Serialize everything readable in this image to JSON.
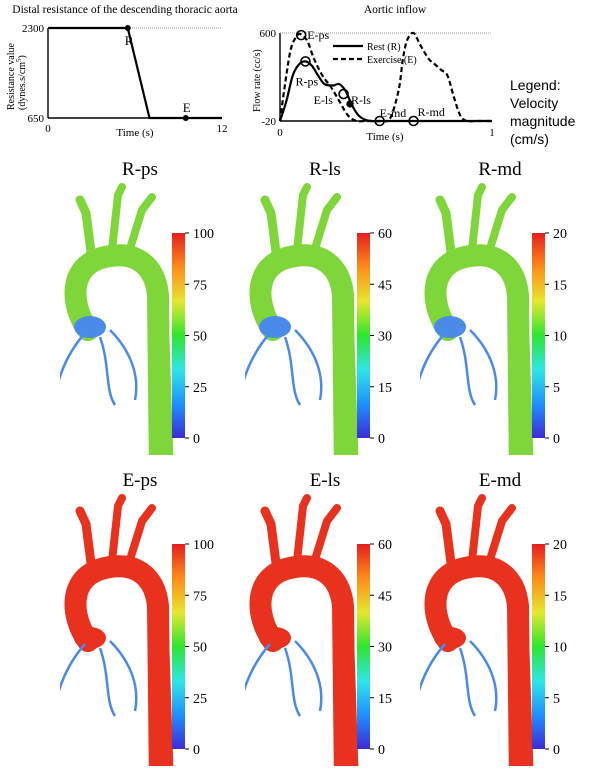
{
  "chart_data": [
    {
      "type": "line",
      "title": "Distal resistance of the descending thoracic aorta",
      "xlabel": "Time (s)",
      "ylabel": "Resistance value (dynes.s/cm⁵)",
      "xlim": [
        0,
        12
      ],
      "ylim": [
        650,
        2300
      ],
      "x_ticks": [
        "0",
        "12"
      ],
      "y_ticks": [
        "2300",
        "650"
      ],
      "series": [
        {
          "x": [
            0,
            5.5,
            7,
            12
          ],
          "y": [
            2300,
            2300,
            650,
            650
          ]
        }
      ],
      "markers": [
        {
          "label": "R",
          "x": 5.5,
          "y": 2300
        },
        {
          "label": "E",
          "x": 9.5,
          "y": 650
        }
      ]
    },
    {
      "type": "line",
      "title": "Aortic inflow",
      "xlabel": "Time (s)",
      "ylabel": "Flow rate (cc/s)",
      "xlim": [
        0,
        1
      ],
      "ylim": [
        -20,
        600
      ],
      "x_ticks": [
        "0",
        "1"
      ],
      "y_ticks": [
        "600",
        "-20"
      ],
      "legend": [
        "Rest (R)",
        "Exercise (E)"
      ],
      "series": [
        {
          "name": "Rest (R)",
          "style": "solid",
          "x": [
            0,
            0.03,
            0.06,
            0.09,
            0.12,
            0.15,
            0.18,
            0.21,
            0.25,
            0.28,
            0.31,
            0.34,
            0.37,
            0.4,
            0.43,
            0.46,
            0.5,
            1.0
          ],
          "y": [
            -20,
            120,
            300,
            380,
            400,
            370,
            300,
            240,
            230,
            240,
            190,
            90,
            20,
            -10,
            -20,
            -20,
            -20,
            -20
          ]
        },
        {
          "name": "Exercise (E)",
          "style": "dashed",
          "x": [
            0,
            0.02,
            0.05,
            0.08,
            0.1,
            0.13,
            0.16,
            0.2,
            0.24,
            0.28,
            0.32,
            0.36,
            0.4,
            0.44,
            0.48,
            0.52,
            0.56,
            0.58,
            0.6,
            0.63,
            0.66,
            0.7,
            0.73,
            0.76,
            0.79,
            0.82,
            0.85,
            0.88,
            0.92,
            1.0
          ],
          "y": [
            -20,
            200,
            480,
            580,
            590,
            540,
            420,
            300,
            220,
            120,
            20,
            -20,
            -20,
            -20,
            -20,
            0,
            200,
            420,
            550,
            600,
            520,
            420,
            380,
            340,
            300,
            150,
            20,
            -20,
            -20,
            -20
          ]
        }
      ],
      "markers": [
        {
          "label": "E-ps",
          "x": 0.1,
          "y": 585
        },
        {
          "label": "R-ps",
          "x": 0.12,
          "y": 400
        },
        {
          "label": "E-ls",
          "x": 0.3,
          "y": 170
        },
        {
          "label": "R-ls",
          "x": 0.33,
          "y": 100
        },
        {
          "label": "E-md",
          "x": 0.47,
          "y": -20
        },
        {
          "label": "R-md",
          "x": 0.63,
          "y": -20
        }
      ]
    }
  ],
  "legend_note": "Legend:\nVelocity magnitude (cm/s)",
  "legend_note_lines": [
    "Legend:",
    "Velocity",
    "magnitude (cm/s)"
  ],
  "panels": [
    {
      "title": "R-ps",
      "scale_max": 100,
      "ticks": [
        "100",
        "75",
        "50",
        "25",
        "0"
      ],
      "fill": "mid"
    },
    {
      "title": "R-ls",
      "scale_max": 60,
      "ticks": [
        "60",
        "45",
        "30",
        "15",
        "0"
      ],
      "fill": "mid"
    },
    {
      "title": "R-md",
      "scale_max": 20,
      "ticks": [
        "20",
        "15",
        "10",
        "5",
        "0"
      ],
      "fill": "mid"
    },
    {
      "title": "E-ps",
      "scale_max": 100,
      "ticks": [
        "100",
        "75",
        "50",
        "25",
        "0"
      ],
      "fill": "high"
    },
    {
      "title": "E-ls",
      "scale_max": 60,
      "ticks": [
        "60",
        "45",
        "30",
        "15",
        "0"
      ],
      "fill": "high"
    },
    {
      "title": "E-md",
      "scale_max": 20,
      "ticks": [
        "20",
        "15",
        "10",
        "5",
        "0"
      ],
      "fill": "high"
    }
  ],
  "colors": {
    "colormap": [
      "#3d2bd6",
      "#1e90ff",
      "#2ee6e6",
      "#2ee62e",
      "#e6e62e",
      "#ff8c1a",
      "#e61e1e"
    ],
    "aorta_mid": "#7fd63a",
    "aorta_high": "#e8321e",
    "branch_low": "#4a8ae8"
  }
}
